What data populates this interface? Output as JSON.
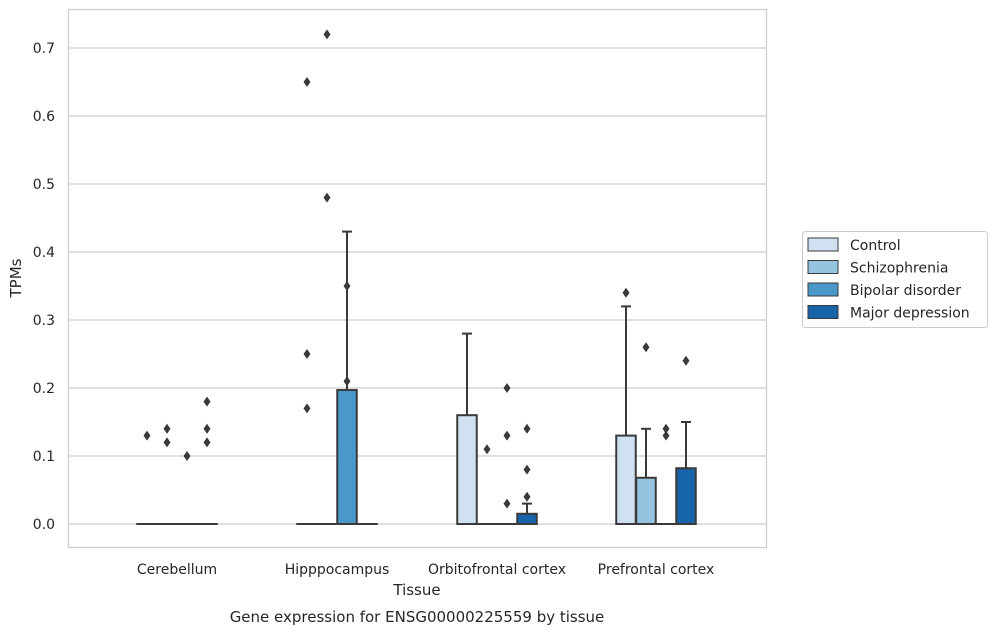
{
  "chart_data": {
    "type": "box",
    "xlabel": "Tissue",
    "ylabel": "TPMs",
    "caption": "Gene expression for ENSG00000225559 by tissue",
    "ylim": [
      -0.035,
      0.755
    ],
    "yticks": [
      "0.0",
      "0.1",
      "0.2",
      "0.3",
      "0.4",
      "0.5",
      "0.6",
      "0.7"
    ],
    "grid": "horizontal",
    "legend_position": "right",
    "categories": [
      "Cerebellum",
      "Hipppocampus",
      "Orbitofrontal cortex",
      "Prefrontal cortex"
    ],
    "series": [
      {
        "name": "Control",
        "color": "#d0e1f2",
        "boxes": [
          {
            "q1": 0,
            "median": 0,
            "q3": 0,
            "whisker_low": 0,
            "whisker_high": 0,
            "outliers": [
              0.13
            ]
          },
          {
            "q1": 0,
            "median": 0,
            "q3": 0,
            "whisker_low": 0,
            "whisker_high": 0,
            "outliers": [
              0.17,
              0.25,
              0.65
            ]
          },
          {
            "q1": 0,
            "median": 0,
            "q3": 0.16,
            "whisker_low": 0,
            "whisker_high": 0.28,
            "outliers": []
          },
          {
            "q1": 0,
            "median": 0,
            "q3": 0.13,
            "whisker_low": 0,
            "whisker_high": 0.32,
            "outliers": [
              0.34
            ]
          }
        ]
      },
      {
        "name": "Schizophrenia",
        "color": "#94c4df",
        "boxes": [
          {
            "q1": 0,
            "median": 0,
            "q3": 0,
            "whisker_low": 0,
            "whisker_high": 0,
            "outliers": [
              0.12,
              0.14
            ]
          },
          {
            "q1": 0,
            "median": 0,
            "q3": 0,
            "whisker_low": 0,
            "whisker_high": 0,
            "outliers": [
              0.48,
              0.72
            ]
          },
          {
            "q1": 0,
            "median": 0,
            "q3": 0,
            "whisker_low": 0,
            "whisker_high": 0,
            "outliers": [
              0.11
            ]
          },
          {
            "q1": 0,
            "median": 0,
            "q3": 0.068,
            "whisker_low": 0,
            "whisker_high": 0.14,
            "outliers": [
              0.26
            ]
          }
        ]
      },
      {
        "name": "Bipolar disorder",
        "color": "#4a98c9",
        "boxes": [
          {
            "q1": 0,
            "median": 0,
            "q3": 0,
            "whisker_low": 0,
            "whisker_high": 0,
            "outliers": [
              0.1
            ]
          },
          {
            "q1": 0,
            "median": 0,
            "q3": 0.197,
            "whisker_low": 0,
            "whisker_high": 0.43,
            "outliers": [
              0.21,
              0.35
            ]
          },
          {
            "q1": 0,
            "median": 0,
            "q3": 0,
            "whisker_low": 0,
            "whisker_high": 0,
            "outliers": [
              0.03,
              0.13,
              0.2
            ]
          },
          {
            "q1": 0,
            "median": 0,
            "q3": 0,
            "whisker_low": 0,
            "whisker_high": 0,
            "outliers": [
              0.13,
              0.14
            ]
          }
        ]
      },
      {
        "name": "Major depression",
        "color": "#1764ab",
        "boxes": [
          {
            "q1": 0,
            "median": 0,
            "q3": 0,
            "whisker_low": 0,
            "whisker_high": 0,
            "outliers": [
              0.12,
              0.14,
              0.18
            ]
          },
          {
            "q1": 0,
            "median": 0,
            "q3": 0,
            "whisker_low": 0,
            "whisker_high": 0,
            "outliers": []
          },
          {
            "q1": 0,
            "median": 0,
            "q3": 0.015,
            "whisker_low": 0,
            "whisker_high": 0.03,
            "outliers": [
              0.04,
              0.08,
              0.14
            ]
          },
          {
            "q1": 0,
            "median": 0,
            "q3": 0.082,
            "whisker_low": 0,
            "whisker_high": 0.15,
            "outliers": [
              0.24
            ]
          }
        ]
      }
    ]
  }
}
